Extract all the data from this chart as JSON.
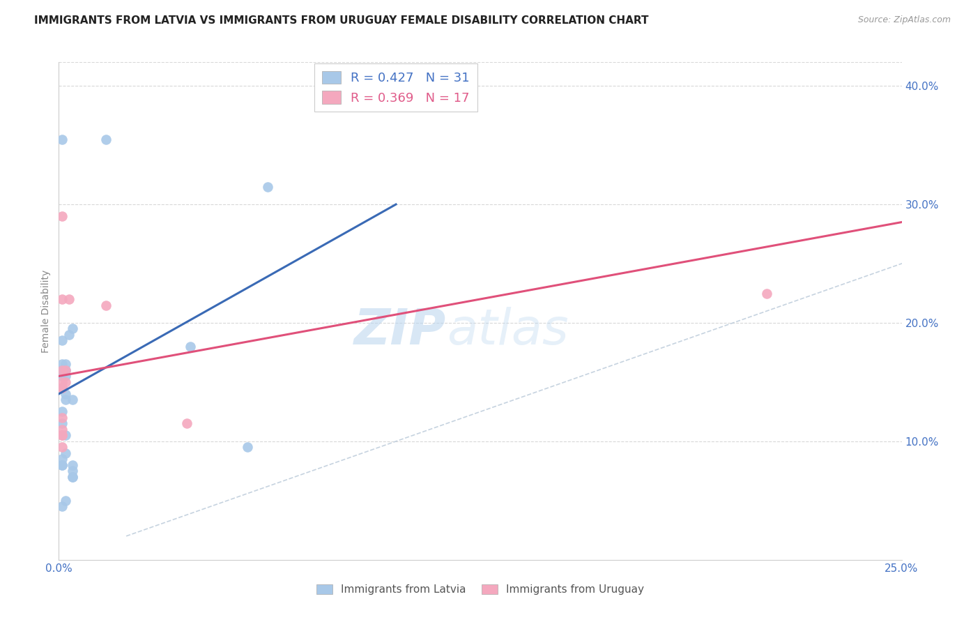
{
  "title": "IMMIGRANTS FROM LATVIA VS IMMIGRANTS FROM URUGUAY FEMALE DISABILITY CORRELATION CHART",
  "source": "Source: ZipAtlas.com",
  "ylabel": "Female Disability",
  "xlim": [
    0.0,
    0.25
  ],
  "ylim": [
    0.0,
    0.42
  ],
  "x_ticks": [
    0.0,
    0.05,
    0.1,
    0.15,
    0.2,
    0.25
  ],
  "x_tick_labels": [
    "0.0%",
    "",
    "",
    "",
    "",
    "25.0%"
  ],
  "y_ticks": [
    0.0,
    0.1,
    0.2,
    0.3,
    0.4
  ],
  "y_tick_labels": [
    "",
    "10.0%",
    "20.0%",
    "30.0%",
    "40.0%"
  ],
  "R_latvia": 0.427,
  "N_latvia": 31,
  "R_uruguay": 0.369,
  "N_uruguay": 17,
  "latvia_color": "#a8c8e8",
  "uruguay_color": "#f4a8be",
  "latvia_line_color": "#3a6ab5",
  "uruguay_line_color": "#e0507a",
  "diagonal_color": "#b8c8d8",
  "watermark_zip": "ZIP",
  "watermark_atlas": "atlas",
  "latvia_x": [
    0.002,
    0.014,
    0.001,
    0.001,
    0.001,
    0.001,
    0.001,
    0.002,
    0.002,
    0.002,
    0.001,
    0.001,
    0.001,
    0.001,
    0.001,
    0.002,
    0.001,
    0.002,
    0.002,
    0.002,
    0.003,
    0.004,
    0.004,
    0.001,
    0.062,
    0.004,
    0.004,
    0.004,
    0.056,
    0.004,
    0.039
  ],
  "latvia_y": [
    0.135,
    0.355,
    0.185,
    0.145,
    0.155,
    0.16,
    0.165,
    0.165,
    0.16,
    0.155,
    0.125,
    0.115,
    0.085,
    0.08,
    0.08,
    0.09,
    0.045,
    0.05,
    0.105,
    0.14,
    0.19,
    0.135,
    0.195,
    0.355,
    0.315,
    0.07,
    0.075,
    0.07,
    0.095,
    0.08,
    0.18
  ],
  "uruguay_x": [
    0.001,
    0.001,
    0.001,
    0.003,
    0.002,
    0.002,
    0.001,
    0.001,
    0.001,
    0.001,
    0.001,
    0.038,
    0.014,
    0.001,
    0.001,
    0.001,
    0.21
  ],
  "uruguay_y": [
    0.145,
    0.29,
    0.22,
    0.22,
    0.15,
    0.16,
    0.16,
    0.145,
    0.15,
    0.11,
    0.105,
    0.115,
    0.215,
    0.095,
    0.105,
    0.12,
    0.225
  ],
  "background_color": "#ffffff",
  "grid_color": "#d8d8d8",
  "legend_bottom_labels": [
    "Immigrants from Latvia",
    "Immigrants from Uruguay"
  ]
}
